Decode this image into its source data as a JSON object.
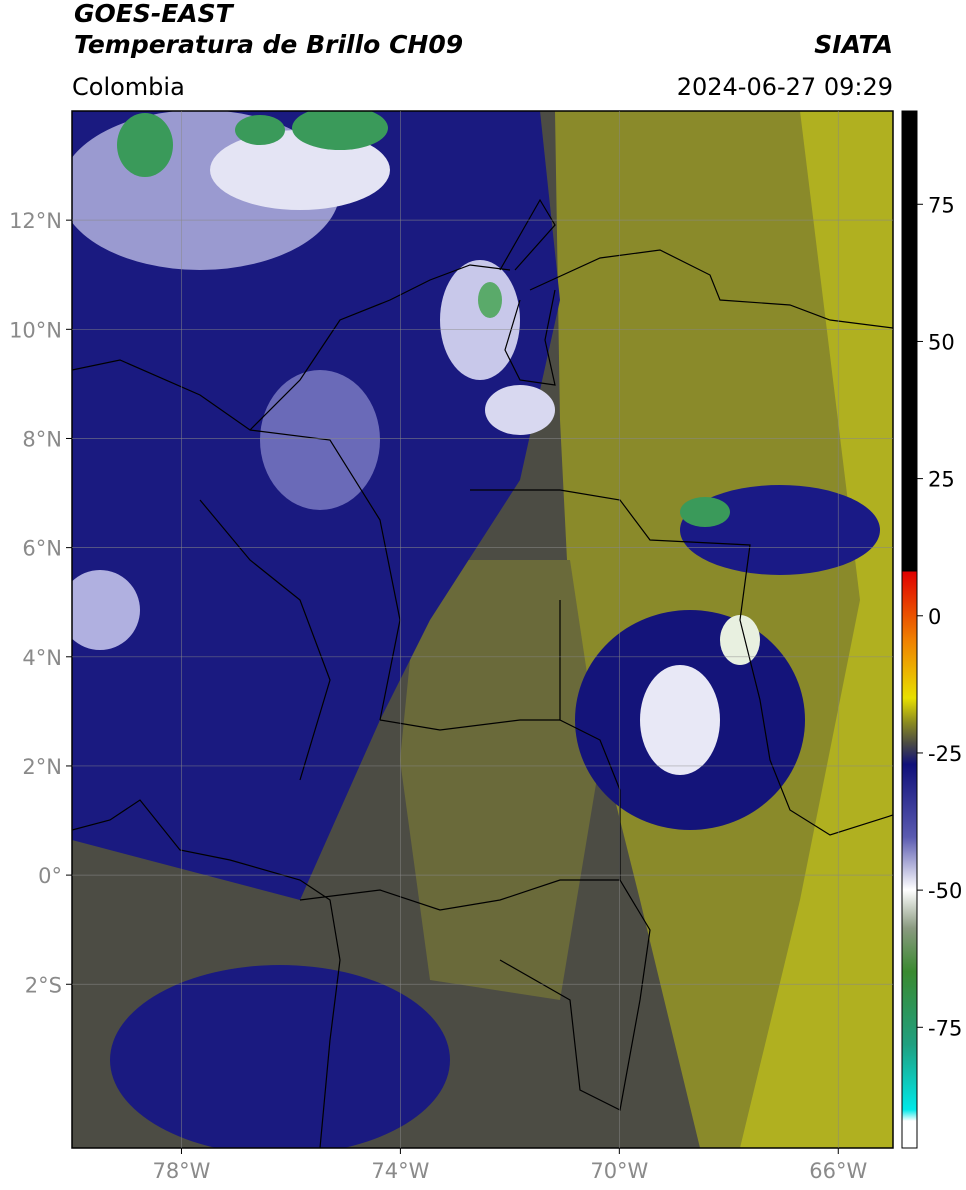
{
  "header": {
    "title": "GOES-EAST",
    "subtitle": "Temperatura de Brillo CH09",
    "region": "Colombia",
    "source": "SIATA",
    "datetime": "2024-06-27 09:29"
  },
  "map": {
    "xlim": [
      -80,
      -65
    ],
    "ylim": [
      -5,
      14
    ],
    "xticks": [
      {
        "value": -78,
        "label": "78°W"
      },
      {
        "value": -74,
        "label": "74°W"
      },
      {
        "value": -70,
        "label": "70°W"
      },
      {
        "value": -66,
        "label": "66°W"
      }
    ],
    "yticks": [
      {
        "value": 12,
        "label": "12°N"
      },
      {
        "value": 10,
        "label": "10°N"
      },
      {
        "value": 8,
        "label": "8°N"
      },
      {
        "value": 6,
        "label": "6°N"
      },
      {
        "value": 4,
        "label": "4°N"
      },
      {
        "value": 2,
        "label": "2°N"
      },
      {
        "value": 0,
        "label": "0°"
      },
      {
        "value": -2,
        "label": "2°S"
      }
    ],
    "grid": true
  },
  "colorbar": {
    "clim": [
      -97,
      92
    ],
    "ticks": [
      75,
      50,
      25,
      0,
      -25,
      -50,
      -75
    ]
  }
}
